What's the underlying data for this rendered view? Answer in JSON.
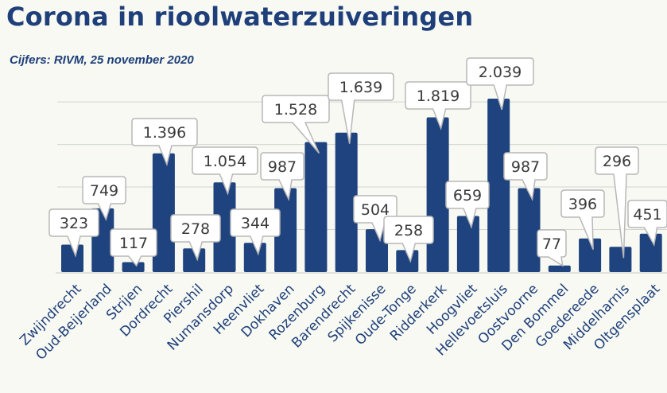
{
  "colors": {
    "background": "#f7f9f2",
    "title": "#1f3f7a",
    "bar": "#1f437f",
    "gridline": "#d2d6ce",
    "callout_fill": "#ffffff",
    "callout_stroke": "#b8b8b8",
    "label_text": "#3a3a3a",
    "tick_text": "#1f3f7a"
  },
  "chart_data": {
    "type": "bar",
    "title": "Corona in rioolwaterzuiveringen",
    "subtitle": "Cijfers: RIVM, 25 november 2020",
    "xlabel": "",
    "ylabel": "",
    "ylim": [
      0,
      2450
    ],
    "grid": true,
    "legend": "none",
    "categories": [
      "Zwijndrecht",
      "Oud-Beijerland",
      "Strijen",
      "Dordrecht",
      "Piershil",
      "Numansdorp",
      "Heenvliet",
      "Dokhaven",
      "Rozenburg",
      "Barendrecht",
      "Spijkenisse",
      "Oude-Tonge",
      "Ridderkerk",
      "Hoogvliet",
      "Hellevoetsluis",
      "Oostvoorne",
      "Den Bommel",
      "Goedereede",
      "Middelharnis",
      "Oltgensplaat"
    ],
    "values": [
      323,
      749,
      117,
      1396,
      278,
      1054,
      344,
      987,
      1528,
      1639,
      504,
      258,
      1819,
      659,
      2039,
      987,
      77,
      396,
      296,
      451
    ],
    "data_labels": [
      "323",
      "749",
      "117",
      "1.396",
      "278",
      "1.054",
      "344",
      "987",
      "1.528",
      "1.639",
      "504",
      "258",
      "1.819",
      "659",
      "2.039",
      "987",
      "77",
      "396",
      "296",
      "451"
    ]
  }
}
